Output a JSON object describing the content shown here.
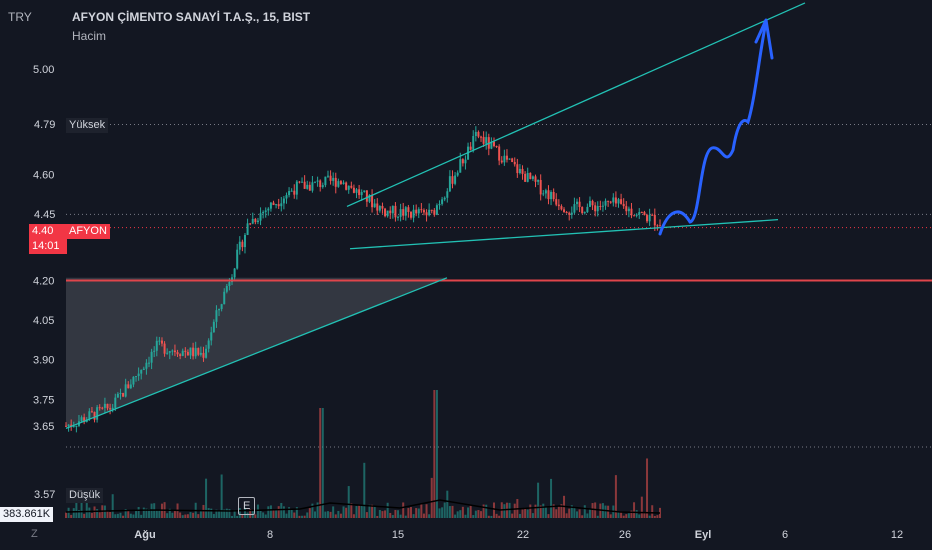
{
  "chart_data": {
    "type": "line",
    "currency": "TRY",
    "title": "AFYON ÇİMENTO SANAYİ T.A.Ş., 15, BIST",
    "volume_label": "Hacim",
    "ylim": [
      3.56,
      5.12
    ],
    "y_ticks": [
      "5.00",
      "4.60",
      "4.20",
      "4.05",
      "3.90",
      "3.75",
      "3.65"
    ],
    "x_ticks": [
      "Ağu",
      "8",
      "15",
      "22",
      "26",
      "Eyl",
      "6",
      "12"
    ],
    "price_path_x": [
      "Ağu",
      "8",
      "15",
      "22",
      "26"
    ],
    "price_path_y": [
      3.65,
      3.72,
      3.95,
      3.92,
      4.42,
      4.55,
      4.58,
      4.46,
      4.45,
      4.75,
      4.6,
      4.47,
      4.49,
      4.42
    ],
    "high_marker": {
      "value": "4.79",
      "label": "Yüksek"
    },
    "low_marker": {
      "value": "3.57",
      "label": "Düşük"
    },
    "last_price": {
      "value": "4.40",
      "label": "AFYON",
      "countdown": "14:01"
    },
    "prev_marker": {
      "value": "4.45"
    },
    "support_level": 4.2,
    "volume_readout": "383.861K",
    "event_marker": "E",
    "footer_icon_label": "Z",
    "colors": {
      "background": "#131722",
      "up": "#26a69a",
      "down": "#ef5350",
      "trendline": "#22c1b4",
      "support": "#e0454b",
      "forecast_arrow": "#2962ff",
      "text": "#d1d4dc"
    }
  }
}
